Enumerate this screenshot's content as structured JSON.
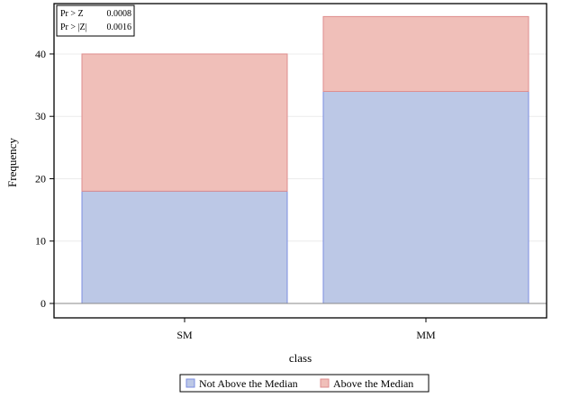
{
  "chart_data": {
    "type": "bar",
    "stacked": true,
    "categories": [
      "SM",
      "MM"
    ],
    "series": [
      {
        "name": "Not Above the Median",
        "values": [
          18,
          34
        ],
        "color": "#bcc8e6",
        "stroke": "#7b8ee0"
      },
      {
        "name": "Above the Median",
        "values": [
          22,
          12
        ],
        "color": "#f0bfb9",
        "stroke": "#de8e8e"
      }
    ],
    "xlabel": "class",
    "ylabel": "Frequency",
    "ylim": [
      0,
      47.5
    ],
    "yticks": [
      0,
      10,
      20,
      30,
      40
    ],
    "grid": true,
    "legend_position": "bottom",
    "inset": {
      "rows": [
        {
          "label": "Pr > Z",
          "value": "0.0008"
        },
        {
          "label": "Pr > |Z|",
          "value": "0.0016"
        }
      ]
    }
  }
}
